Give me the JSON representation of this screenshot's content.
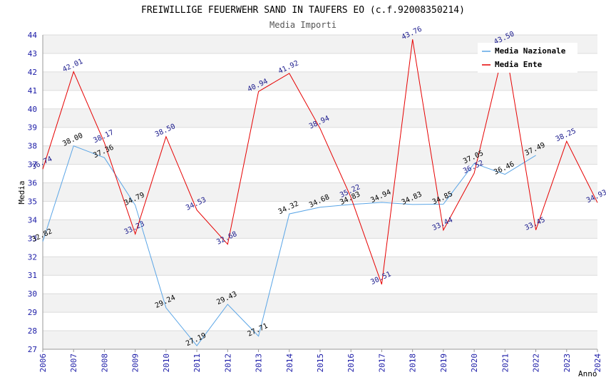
{
  "chart_data": {
    "type": "line",
    "title": "FREIWILLIGE FEUERWEHR SAND IN TAUFERS EO (c.f.92008350214)",
    "subtitle": "Media Importi",
    "xlabel": "Anno",
    "ylabel": "Media",
    "x": [
      2006,
      2007,
      2008,
      2009,
      2010,
      2011,
      2012,
      2013,
      2014,
      2015,
      2016,
      2017,
      2018,
      2019,
      2020,
      2021,
      2022,
      2023,
      2024
    ],
    "ylim": [
      27,
      44
    ],
    "y_ticks": [
      27,
      28,
      29,
      30,
      31,
      32,
      33,
      34,
      35,
      36,
      37,
      38,
      39,
      40,
      41,
      42,
      43,
      44
    ],
    "grid": "horizontal bands",
    "legend_position": "top-right",
    "series": [
      {
        "name": "Media Nazionale",
        "color": "#5aa5e6",
        "values": [
          32.82,
          38.0,
          37.36,
          34.79,
          29.24,
          27.19,
          29.43,
          27.71,
          34.32,
          34.68,
          34.83,
          34.94,
          34.83,
          34.85,
          37.05,
          36.46,
          37.49,
          null,
          null
        ],
        "labels": [
          "32.82",
          "38.00",
          "37.36",
          "34.79",
          "29.24",
          "27.19",
          "29.43",
          "27.71",
          "34.32",
          "34.68",
          "34.83",
          "34.94",
          "34.83",
          "34.85",
          "37.05",
          "36.46",
          "37.49",
          "",
          ""
        ]
      },
      {
        "name": "Media Ente",
        "color": "#e60000",
        "values": [
          36.74,
          42.01,
          38.17,
          33.23,
          38.5,
          34.53,
          32.68,
          40.94,
          41.92,
          38.94,
          35.22,
          30.51,
          43.76,
          33.44,
          36.52,
          43.5,
          33.45,
          38.25,
          34.93
        ],
        "labels": [
          "36.74",
          "42.01",
          "38.17",
          "33.23",
          "38.50",
          "34.53",
          "32.68",
          "40.94",
          "41.92",
          "38.94",
          "35.22",
          "30.51",
          "43.76",
          "33.44",
          "36.52",
          "43.50",
          "33.45",
          "38.25",
          "34.93"
        ]
      }
    ]
  }
}
